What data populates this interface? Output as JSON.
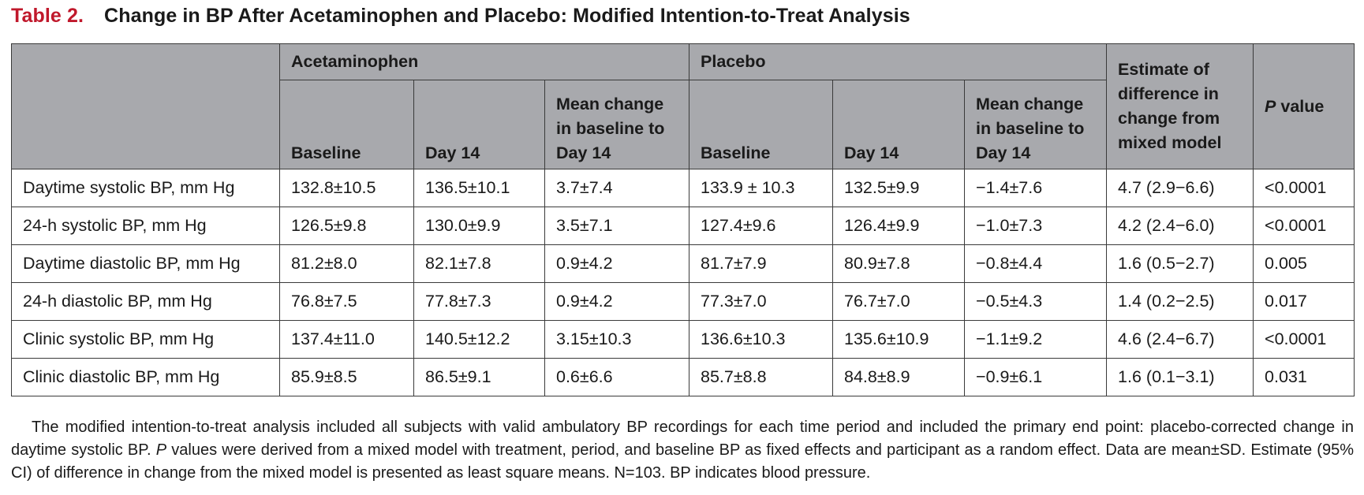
{
  "title": {
    "number": "Table 2.",
    "text": "Change in BP After Acetaminophen and Placebo: Modified Intention-to-Treat Analysis"
  },
  "header": {
    "group_acetaminophen": "Acetaminophen",
    "group_placebo": "Placebo",
    "acet_baseline": "Baseline",
    "acet_day14": "Day 14",
    "acet_mean_change": "Mean change in baseline to Day 14",
    "plac_baseline": "Baseline",
    "plac_day14": "Day 14",
    "plac_mean_change": "Mean change in baseline to Day 14",
    "estimate": "Estimate of difference in change from mixed model",
    "p_italic": "P",
    "p_rest": " value"
  },
  "rows": [
    {
      "label": "Daytime systolic BP, mm Hg",
      "a_base": "132.8±10.5",
      "a_d14": "136.5±10.1",
      "a_chg": "3.7±7.4",
      "p_base": "133.9 ± 10.3",
      "p_d14": "132.5±9.9",
      "p_chg": "−1.4±7.6",
      "est": "4.7 (2.9−6.6)",
      "pval": "<0.0001"
    },
    {
      "label": "24-h systolic BP, mm Hg",
      "a_base": "126.5±9.8",
      "a_d14": "130.0±9.9",
      "a_chg": "3.5±7.1",
      "p_base": "127.4±9.6",
      "p_d14": "126.4±9.9",
      "p_chg": "−1.0±7.3",
      "est": "4.2 (2.4−6.0)",
      "pval": "<0.0001"
    },
    {
      "label": "Daytime diastolic BP, mm Hg",
      "a_base": "81.2±8.0",
      "a_d14": "82.1±7.8",
      "a_chg": "0.9±4.2",
      "p_base": "81.7±7.9",
      "p_d14": "80.9±7.8",
      "p_chg": "−0.8±4.4",
      "est": "1.6 (0.5−2.7)",
      "pval": "0.005"
    },
    {
      "label": "24-h diastolic BP, mm Hg",
      "a_base": "76.8±7.5",
      "a_d14": "77.8±7.3",
      "a_chg": "0.9±4.2",
      "p_base": "77.3±7.0",
      "p_d14": "76.7±7.0",
      "p_chg": "−0.5±4.3",
      "est": "1.4 (0.2−2.5)",
      "pval": "0.017"
    },
    {
      "label": "Clinic systolic BP, mm Hg",
      "a_base": "137.4±11.0",
      "a_d14": "140.5±12.2",
      "a_chg": "3.15±10.3",
      "p_base": "136.6±10.3",
      "p_d14": "135.6±10.9",
      "p_chg": "−1.1±9.2",
      "est": "4.6 (2.4−6.7)",
      "pval": "<0.0001"
    },
    {
      "label": "Clinic diastolic BP, mm Hg",
      "a_base": "85.9±8.5",
      "a_d14": "86.5±9.1",
      "a_chg": "0.6±6.6",
      "p_base": "85.7±8.8",
      "p_d14": "84.8±8.9",
      "p_chg": "−0.9±6.1",
      "est": "1.6 (0.1−3.1)",
      "pval": "0.031"
    }
  ],
  "footnote": {
    "part1": "The modified intention-to-treat analysis included all subjects with valid ambulatory BP recordings for each time period and included the primary end point: placebo-corrected change in daytime systolic BP. ",
    "p_italic": "P",
    "part2": " values were derived from a mixed model with treatment, period, and baseline BP as fixed effects and participant as a random effect. Data are mean±SD. Estimate (95% CI) of difference in change from the mixed model is presented as least square means. N=103. BP indicates blood pressure."
  },
  "colors": {
    "title_number": "#c0182b",
    "header_background": "#a8a9ad",
    "border": "#3a3a3a"
  }
}
